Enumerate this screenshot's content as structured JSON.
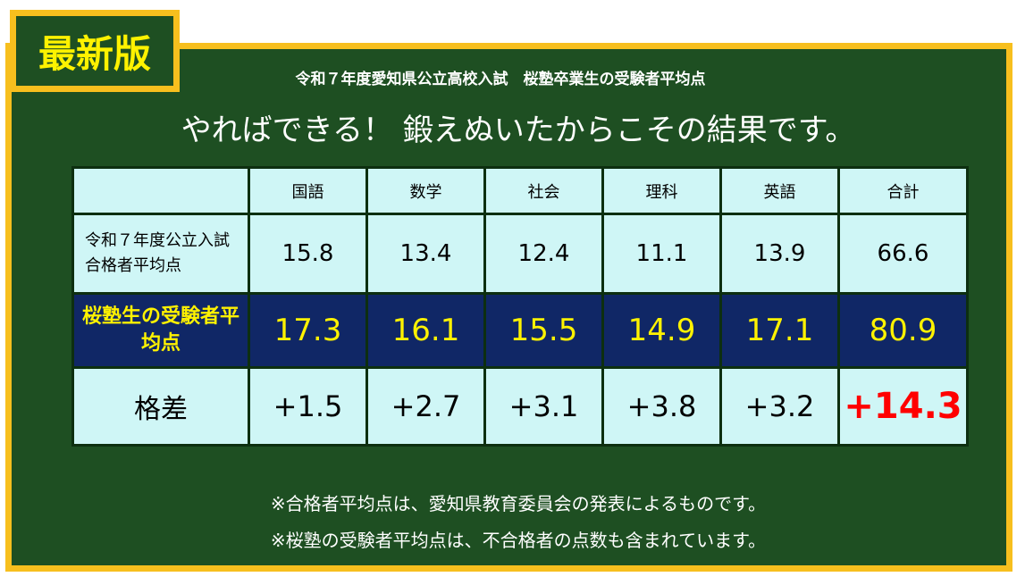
{
  "badge": "最新版",
  "subtitle": "令和７年度愛知県公立高校入試　桜塾卒業生の受験者平均点",
  "headline": "やればできる！ 鍛えぬいたからこその結果です。",
  "table": {
    "headers": [
      "",
      "国語",
      "数学",
      "社会",
      "理科",
      "英語",
      "合計"
    ],
    "rows": [
      {
        "label": "令和７年度公立入試　合格者平均点",
        "values": [
          "15.8",
          "13.4",
          "12.4",
          "11.1",
          "13.9",
          "66.6"
        ]
      },
      {
        "label": "桜塾生の受験者平均点",
        "values": [
          "17.3",
          "16.1",
          "15.5",
          "14.9",
          "17.1",
          "80.9"
        ]
      },
      {
        "label": "格差",
        "values": [
          "+1.5",
          "+2.7",
          "+3.1",
          "+3.8",
          "+3.2",
          "+14.3"
        ]
      }
    ]
  },
  "notes": [
    "※合格者平均点は、愛知県教育委員会の発表によるものです。",
    "※桜塾の受験者平均点は、不合格者の点数も含まれています。"
  ],
  "colors": {
    "board": "#1e4f22",
    "frame": "#f7bf1e",
    "badge_text": "#fff200",
    "cell": "#cff6f6",
    "highlight_row": "#102766",
    "highlight_text": "#fff200",
    "total_diff": "#ff0000"
  }
}
